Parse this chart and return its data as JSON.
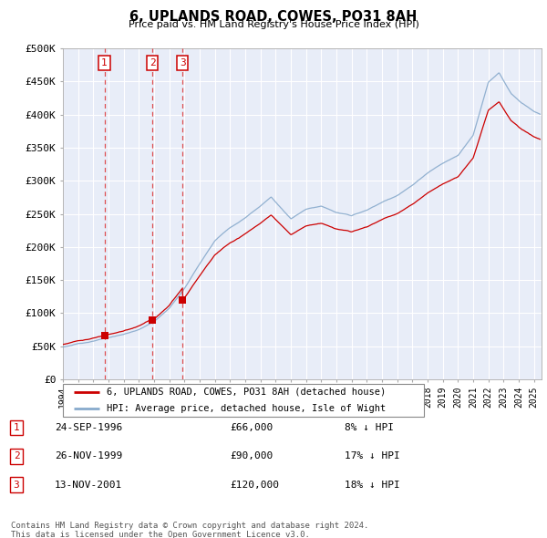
{
  "title": "6, UPLANDS ROAD, COWES, PO31 8AH",
  "subtitle": "Price paid vs. HM Land Registry's House Price Index (HPI)",
  "xlim_start": 1994.0,
  "xlim_end": 2025.5,
  "ylim_min": 0,
  "ylim_max": 500000,
  "yticks": [
    0,
    50000,
    100000,
    150000,
    200000,
    250000,
    300000,
    350000,
    400000,
    450000,
    500000
  ],
  "ytick_labels": [
    "£0",
    "£50K",
    "£100K",
    "£150K",
    "£200K",
    "£250K",
    "£300K",
    "£350K",
    "£400K",
    "£450K",
    "£500K"
  ],
  "xtick_years": [
    1994,
    1995,
    1996,
    1997,
    1998,
    1999,
    2000,
    2001,
    2002,
    2003,
    2004,
    2005,
    2006,
    2007,
    2008,
    2009,
    2010,
    2011,
    2012,
    2013,
    2014,
    2015,
    2016,
    2017,
    2018,
    2019,
    2020,
    2021,
    2022,
    2023,
    2024,
    2025
  ],
  "sales": [
    {
      "date_year": 1996.73,
      "price": 66000,
      "label": "1"
    },
    {
      "date_year": 1999.9,
      "price": 90000,
      "label": "2"
    },
    {
      "date_year": 2001.87,
      "price": 120000,
      "label": "3"
    }
  ],
  "sale_color": "#cc0000",
  "hpi_color": "#88aacc",
  "legend_label_price": "6, UPLANDS ROAD, COWES, PO31 8AH (detached house)",
  "legend_label_hpi": "HPI: Average price, detached house, Isle of Wight",
  "table_rows": [
    {
      "num": "1",
      "date": "24-SEP-1996",
      "price": "£66,000",
      "change": "8% ↓ HPI"
    },
    {
      "num": "2",
      "date": "26-NOV-1999",
      "price": "£90,000",
      "change": "17% ↓ HPI"
    },
    {
      "num": "3",
      "date": "13-NOV-2001",
      "price": "£120,000",
      "change": "18% ↓ HPI"
    }
  ],
  "footer": "Contains HM Land Registry data © Crown copyright and database right 2024.\nThis data is licensed under the Open Government Licence v3.0.",
  "plot_bg": "#e8edf8"
}
